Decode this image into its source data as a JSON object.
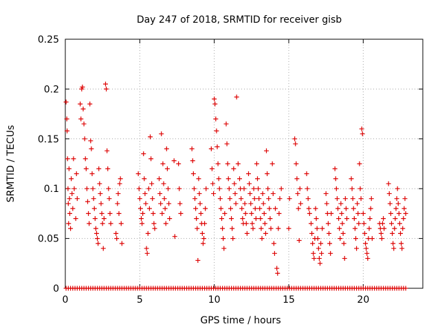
{
  "chart_data": {
    "type": "scatter",
    "title": "Day 247 of 2018, SRMTID for receiver gisb",
    "xlabel": "GPS time / hours",
    "ylabel": "SRMTID / TECUs",
    "xlim": [
      0,
      24
    ],
    "ylim": [
      0,
      0.25
    ],
    "xticks": [
      0,
      5,
      10,
      15,
      20
    ],
    "xtick_labels": [
      "0",
      "5",
      "10",
      "15",
      "20"
    ],
    "yticks": [
      0,
      0.05,
      0.1,
      0.15,
      0.2,
      0.25
    ],
    "ytick_labels": [
      "0",
      "0.05",
      "0.1",
      "0.15",
      "0.2",
      "0.25"
    ],
    "grid": true,
    "marker": "+",
    "color": "#dd0000",
    "zero_x": [
      0.05,
      0.2,
      0.35,
      0.5,
      0.65,
      0.8,
      0.95,
      1.1,
      1.25,
      1.4,
      1.55,
      1.7,
      1.85,
      2.0,
      2.15,
      2.3,
      2.45,
      2.6,
      2.75,
      2.9,
      3.05,
      3.2,
      3.35,
      3.5,
      3.65,
      3.8,
      3.95,
      4.1,
      4.25,
      4.4,
      4.55,
      4.7,
      4.85,
      5.0,
      5.15,
      5.3,
      5.45,
      5.6,
      5.75,
      5.9,
      6.05,
      6.2,
      6.35,
      6.5,
      6.65,
      6.8,
      6.95,
      7.1,
      7.25,
      7.4,
      7.55,
      7.7,
      7.85,
      8.0,
      8.15,
      8.3,
      8.45,
      8.6,
      8.75,
      8.9,
      9.05,
      9.2,
      9.35,
      9.5,
      9.65,
      9.8,
      9.95,
      10.1,
      10.25,
      10.4,
      10.55,
      10.7,
      10.85,
      11.0,
      11.15,
      11.3,
      11.45,
      11.6,
      11.75,
      11.9,
      12.05,
      12.2,
      12.35,
      12.5,
      12.65,
      12.8,
      12.95,
      13.1,
      13.25,
      13.4,
      13.55,
      13.7,
      13.85,
      14.0,
      14.15,
      14.3,
      14.45,
      14.6,
      14.75,
      14.9,
      15.05,
      15.2,
      15.35,
      15.5,
      15.65,
      15.8,
      15.95,
      16.1,
      16.25,
      16.4,
      16.55,
      16.7,
      16.85,
      17.0,
      17.15,
      17.3,
      17.45,
      17.6,
      17.75,
      17.9,
      18.05,
      18.2,
      18.35,
      18.5,
      18.65,
      18.8,
      18.95,
      19.1,
      19.25,
      19.4,
      19.55,
      19.7,
      19.85,
      20.0,
      20.15,
      20.3,
      20.45,
      20.6,
      20.75,
      20.9,
      21.05,
      21.2,
      21.35,
      21.5,
      21.65,
      21.8,
      21.95,
      22.1,
      22.25,
      22.4,
      22.55,
      22.7,
      22.85
    ],
    "points": [
      [
        0.05,
        0.187
      ],
      [
        0.1,
        0.17
      ],
      [
        0.12,
        0.158
      ],
      [
        0.15,
        0.13
      ],
      [
        0.18,
        0.1
      ],
      [
        0.2,
        0.085
      ],
      [
        0.22,
        0.065
      ],
      [
        0.25,
        0.12
      ],
      [
        0.28,
        0.09
      ],
      [
        0.3,
        0.075
      ],
      [
        0.35,
        0.06
      ],
      [
        0.4,
        0.11
      ],
      [
        0.45,
        0.095
      ],
      [
        0.5,
        0.08
      ],
      [
        0.55,
        0.13
      ],
      [
        0.6,
        0.1
      ],
      [
        0.7,
        0.07
      ],
      [
        0.75,
        0.115
      ],
      [
        0.8,
        0.09
      ],
      [
        1.0,
        0.185
      ],
      [
        1.05,
        0.17
      ],
      [
        1.1,
        0.2
      ],
      [
        1.15,
        0.202
      ],
      [
        1.2,
        0.18
      ],
      [
        1.25,
        0.165
      ],
      [
        1.3,
        0.15
      ],
      [
        1.35,
        0.13
      ],
      [
        1.4,
        0.12
      ],
      [
        1.45,
        0.1
      ],
      [
        1.5,
        0.087
      ],
      [
        1.55,
        0.075
      ],
      [
        1.6,
        0.065
      ],
      [
        1.65,
        0.185
      ],
      [
        1.7,
        0.148
      ],
      [
        1.75,
        0.14
      ],
      [
        1.8,
        0.115
      ],
      [
        1.85,
        0.1
      ],
      [
        1.9,
        0.09
      ],
      [
        1.95,
        0.08
      ],
      [
        2.0,
        0.07
      ],
      [
        2.05,
        0.06
      ],
      [
        2.1,
        0.055
      ],
      [
        2.15,
        0.05
      ],
      [
        2.2,
        0.045
      ],
      [
        2.25,
        0.12
      ],
      [
        2.3,
        0.105
      ],
      [
        2.35,
        0.095
      ],
      [
        2.4,
        0.085
      ],
      [
        2.45,
        0.075
      ],
      [
        2.5,
        0.065
      ],
      [
        2.55,
        0.04
      ],
      [
        2.6,
        0.07
      ],
      [
        2.7,
        0.205
      ],
      [
        2.75,
        0.2
      ],
      [
        2.8,
        0.138
      ],
      [
        2.85,
        0.12
      ],
      [
        2.9,
        0.1
      ],
      [
        2.95,
        0.09
      ],
      [
        3.0,
        0.075
      ],
      [
        3.05,
        0.065
      ],
      [
        3.4,
        0.055
      ],
      [
        3.45,
        0.05
      ],
      [
        3.5,
        0.085
      ],
      [
        3.55,
        0.095
      ],
      [
        3.6,
        0.075
      ],
      [
        3.65,
        0.105
      ],
      [
        3.7,
        0.11
      ],
      [
        3.75,
        0.065
      ],
      [
        3.8,
        0.045
      ],
      [
        4.9,
        0.115
      ],
      [
        4.95,
        0.1
      ],
      [
        5.0,
        0.09
      ],
      [
        5.05,
        0.08
      ],
      [
        5.1,
        0.07
      ],
      [
        5.15,
        0.065
      ],
      [
        5.2,
        0.075
      ],
      [
        5.25,
        0.135
      ],
      [
        5.3,
        0.11
      ],
      [
        5.35,
        0.095
      ],
      [
        5.4,
        0.085
      ],
      [
        5.45,
        0.04
      ],
      [
        5.5,
        0.035
      ],
      [
        5.55,
        0.055
      ],
      [
        5.6,
        0.1
      ],
      [
        5.65,
        0.08
      ],
      [
        5.7,
        0.152
      ],
      [
        5.75,
        0.13
      ],
      [
        5.8,
        0.105
      ],
      [
        5.85,
        0.09
      ],
      [
        5.9,
        0.075
      ],
      [
        5.95,
        0.065
      ],
      [
        6.0,
        0.06
      ],
      [
        6.3,
        0.11
      ],
      [
        6.35,
        0.095
      ],
      [
        6.4,
        0.085
      ],
      [
        6.45,
        0.155
      ],
      [
        6.5,
        0.075
      ],
      [
        6.55,
        0.125
      ],
      [
        6.6,
        0.105
      ],
      [
        6.65,
        0.09
      ],
      [
        6.7,
        0.08
      ],
      [
        6.75,
        0.065
      ],
      [
        6.8,
        0.14
      ],
      [
        6.85,
        0.12
      ],
      [
        6.9,
        0.1
      ],
      [
        6.95,
        0.085
      ],
      [
        7.0,
        0.07
      ],
      [
        7.3,
        0.128
      ],
      [
        7.35,
        0.052
      ],
      [
        7.6,
        0.125
      ],
      [
        7.65,
        0.1
      ],
      [
        7.7,
        0.085
      ],
      [
        7.75,
        0.075
      ],
      [
        8.5,
        0.14
      ],
      [
        8.55,
        0.128
      ],
      [
        8.6,
        0.115
      ],
      [
        8.65,
        0.1
      ],
      [
        8.7,
        0.09
      ],
      [
        8.75,
        0.08
      ],
      [
        8.8,
        0.07
      ],
      [
        8.85,
        0.06
      ],
      [
        8.9,
        0.028
      ],
      [
        8.95,
        0.11
      ],
      [
        9.0,
        0.095
      ],
      [
        9.05,
        0.085
      ],
      [
        9.1,
        0.075
      ],
      [
        9.15,
        0.065
      ],
      [
        9.2,
        0.055
      ],
      [
        9.25,
        0.045
      ],
      [
        9.3,
        0.05
      ],
      [
        9.35,
        0.065
      ],
      [
        9.4,
        0.08
      ],
      [
        9.45,
        0.1
      ],
      [
        9.8,
        0.14
      ],
      [
        9.85,
        0.12
      ],
      [
        9.9,
        0.105
      ],
      [
        9.95,
        0.095
      ],
      [
        10.0,
        0.19
      ],
      [
        10.05,
        0.185
      ],
      [
        10.1,
        0.17
      ],
      [
        10.15,
        0.158
      ],
      [
        10.2,
        0.142
      ],
      [
        10.25,
        0.125
      ],
      [
        10.3,
        0.11
      ],
      [
        10.35,
        0.1
      ],
      [
        10.4,
        0.09
      ],
      [
        10.45,
        0.08
      ],
      [
        10.5,
        0.07
      ],
      [
        10.55,
        0.06
      ],
      [
        10.6,
        0.05
      ],
      [
        10.65,
        0.04
      ],
      [
        10.7,
        0.075
      ],
      [
        10.8,
        0.165
      ],
      [
        10.85,
        0.145
      ],
      [
        10.9,
        0.125
      ],
      [
        10.95,
        0.11
      ],
      [
        11.0,
        0.1
      ],
      [
        11.05,
        0.09
      ],
      [
        11.1,
        0.08
      ],
      [
        11.15,
        0.07
      ],
      [
        11.2,
        0.06
      ],
      [
        11.25,
        0.05
      ],
      [
        11.3,
        0.12
      ],
      [
        11.35,
        0.105
      ],
      [
        11.4,
        0.095
      ],
      [
        11.45,
        0.085
      ],
      [
        11.5,
        0.192
      ],
      [
        11.6,
        0.125
      ],
      [
        11.7,
        0.11
      ],
      [
        11.75,
        0.1
      ],
      [
        11.8,
        0.09
      ],
      [
        11.85,
        0.08
      ],
      [
        11.9,
        0.07
      ],
      [
        11.95,
        0.065
      ],
      [
        12.0,
        0.1
      ],
      [
        12.05,
        0.085
      ],
      [
        12.1,
        0.075
      ],
      [
        12.15,
        0.065
      ],
      [
        12.2,
        0.055
      ],
      [
        12.3,
        0.115
      ],
      [
        12.35,
        0.105
      ],
      [
        12.4,
        0.095
      ],
      [
        12.45,
        0.085
      ],
      [
        12.5,
        0.075
      ],
      [
        12.55,
        0.065
      ],
      [
        12.6,
        0.06
      ],
      [
        12.65,
        0.1
      ],
      [
        12.7,
        0.09
      ],
      [
        12.75,
        0.08
      ],
      [
        12.8,
        0.07
      ],
      [
        12.85,
        0.125
      ],
      [
        12.9,
        0.11
      ],
      [
        12.95,
        0.1
      ],
      [
        13.0,
        0.09
      ],
      [
        13.05,
        0.08
      ],
      [
        13.1,
        0.07
      ],
      [
        13.15,
        0.06
      ],
      [
        13.2,
        0.05
      ],
      [
        13.25,
        0.095
      ],
      [
        13.3,
        0.085
      ],
      [
        13.35,
        0.075
      ],
      [
        13.4,
        0.065
      ],
      [
        13.45,
        0.055
      ],
      [
        13.5,
        0.138
      ],
      [
        13.55,
        0.115
      ],
      [
        13.6,
        0.1
      ],
      [
        13.65,
        0.09
      ],
      [
        13.7,
        0.08
      ],
      [
        13.75,
        0.07
      ],
      [
        13.8,
        0.06
      ],
      [
        13.9,
        0.125
      ],
      [
        13.95,
        0.095
      ],
      [
        14.0,
        0.045
      ],
      [
        14.05,
        0.035
      ],
      [
        14.1,
        0.08
      ],
      [
        14.2,
        0.02
      ],
      [
        14.25,
        0.015
      ],
      [
        14.3,
        0.06
      ],
      [
        14.35,
        0.075
      ],
      [
        14.4,
        0.09
      ],
      [
        14.5,
        0.1
      ],
      [
        15.0,
        0.06
      ],
      [
        15.05,
        0.09
      ],
      [
        15.4,
        0.15
      ],
      [
        15.45,
        0.145
      ],
      [
        15.5,
        0.125
      ],
      [
        15.55,
        0.11
      ],
      [
        15.6,
        0.095
      ],
      [
        15.65,
        0.08
      ],
      [
        15.7,
        0.048
      ],
      [
        15.75,
        0.1
      ],
      [
        15.8,
        0.085
      ],
      [
        16.2,
        0.115
      ],
      [
        16.25,
        0.1
      ],
      [
        16.3,
        0.09
      ],
      [
        16.35,
        0.08
      ],
      [
        16.4,
        0.075
      ],
      [
        16.5,
        0.065
      ],
      [
        16.55,
        0.055
      ],
      [
        16.6,
        0.045
      ],
      [
        16.65,
        0.035
      ],
      [
        16.7,
        0.03
      ],
      [
        16.75,
        0.05
      ],
      [
        16.8,
        0.08
      ],
      [
        16.85,
        0.07
      ],
      [
        16.9,
        0.06
      ],
      [
        16.95,
        0.05
      ],
      [
        17.0,
        0.04
      ],
      [
        17.05,
        0.03
      ],
      [
        17.1,
        0.025
      ],
      [
        17.15,
        0.045
      ],
      [
        17.2,
        0.035
      ],
      [
        17.25,
        0.06
      ],
      [
        17.5,
        0.095
      ],
      [
        17.55,
        0.085
      ],
      [
        17.6,
        0.075
      ],
      [
        17.65,
        0.065
      ],
      [
        17.7,
        0.055
      ],
      [
        17.75,
        0.045
      ],
      [
        17.8,
        0.035
      ],
      [
        17.85,
        0.075
      ],
      [
        18.1,
        0.12
      ],
      [
        18.15,
        0.11
      ],
      [
        18.2,
        0.1
      ],
      [
        18.25,
        0.09
      ],
      [
        18.3,
        0.08
      ],
      [
        18.35,
        0.07
      ],
      [
        18.4,
        0.06
      ],
      [
        18.45,
        0.05
      ],
      [
        18.5,
        0.085
      ],
      [
        18.55,
        0.075
      ],
      [
        18.6,
        0.065
      ],
      [
        18.65,
        0.055
      ],
      [
        18.7,
        0.045
      ],
      [
        18.75,
        0.03
      ],
      [
        18.8,
        0.09
      ],
      [
        18.85,
        0.08
      ],
      [
        18.9,
        0.07
      ],
      [
        19.2,
        0.11
      ],
      [
        19.25,
        0.1
      ],
      [
        19.3,
        0.09
      ],
      [
        19.35,
        0.08
      ],
      [
        19.4,
        0.07
      ],
      [
        19.45,
        0.06
      ],
      [
        19.5,
        0.05
      ],
      [
        19.55,
        0.04
      ],
      [
        19.6,
        0.085
      ],
      [
        19.65,
        0.075
      ],
      [
        19.7,
        0.065
      ],
      [
        19.75,
        0.125
      ],
      [
        19.8,
        0.1
      ],
      [
        19.85,
        0.09
      ],
      [
        19.9,
        0.16
      ],
      [
        19.95,
        0.155
      ],
      [
        20.0,
        0.075
      ],
      [
        20.05,
        0.065
      ],
      [
        20.1,
        0.055
      ],
      [
        20.15,
        0.045
      ],
      [
        20.2,
        0.04
      ],
      [
        20.25,
        0.035
      ],
      [
        20.3,
        0.03
      ],
      [
        20.35,
        0.05
      ],
      [
        20.4,
        0.06
      ],
      [
        20.45,
        0.07
      ],
      [
        20.5,
        0.08
      ],
      [
        20.55,
        0.09
      ],
      [
        20.6,
        0.05
      ],
      [
        21.1,
        0.065
      ],
      [
        21.15,
        0.06
      ],
      [
        21.2,
        0.055
      ],
      [
        21.25,
        0.05
      ],
      [
        21.3,
        0.065
      ],
      [
        21.35,
        0.07
      ],
      [
        21.4,
        0.06
      ],
      [
        21.7,
        0.105
      ],
      [
        21.75,
        0.095
      ],
      [
        21.8,
        0.085
      ],
      [
        21.85,
        0.075
      ],
      [
        21.9,
        0.065
      ],
      [
        21.95,
        0.055
      ],
      [
        22.0,
        0.045
      ],
      [
        22.05,
        0.04
      ],
      [
        22.1,
        0.06
      ],
      [
        22.15,
        0.07
      ],
      [
        22.2,
        0.08
      ],
      [
        22.25,
        0.09
      ],
      [
        22.3,
        0.1
      ],
      [
        22.35,
        0.085
      ],
      [
        22.4,
        0.075
      ],
      [
        22.45,
        0.065
      ],
      [
        22.5,
        0.055
      ],
      [
        22.55,
        0.045
      ],
      [
        22.6,
        0.04
      ],
      [
        22.65,
        0.06
      ],
      [
        22.7,
        0.07
      ],
      [
        22.75,
        0.08
      ],
      [
        22.8,
        0.09
      ],
      [
        22.85,
        0.075
      ]
    ]
  }
}
